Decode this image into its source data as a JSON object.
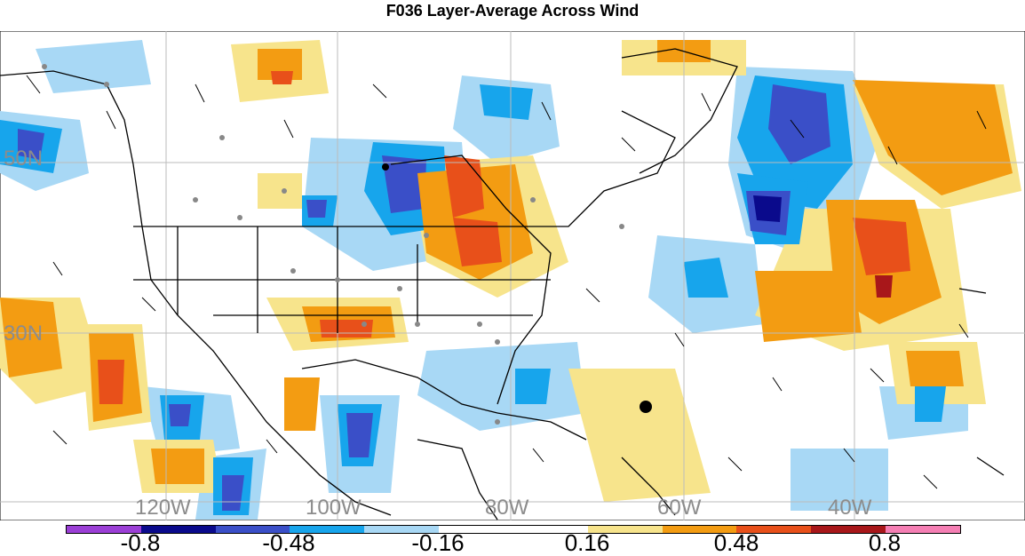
{
  "title": "F036 Layer-Average Across Wind",
  "map": {
    "lat_labels": [
      "50N",
      "30N"
    ],
    "lon_labels": [
      "120W",
      "100W",
      "80W",
      "60W",
      "40W"
    ]
  },
  "colorbar": {
    "ticks": [
      "-0.8",
      "-0.48",
      "-0.16",
      "0.16",
      "0.48",
      "0.8"
    ],
    "colors": [
      "#9b3fd6",
      "#0a0a8c",
      "#3a4fc8",
      "#17a5ec",
      "#a8d8f5",
      "#ffffff",
      "#ffffff",
      "#f7e48c",
      "#f39c12",
      "#e8501a",
      "#a8171a",
      "#f57fb4"
    ]
  }
}
